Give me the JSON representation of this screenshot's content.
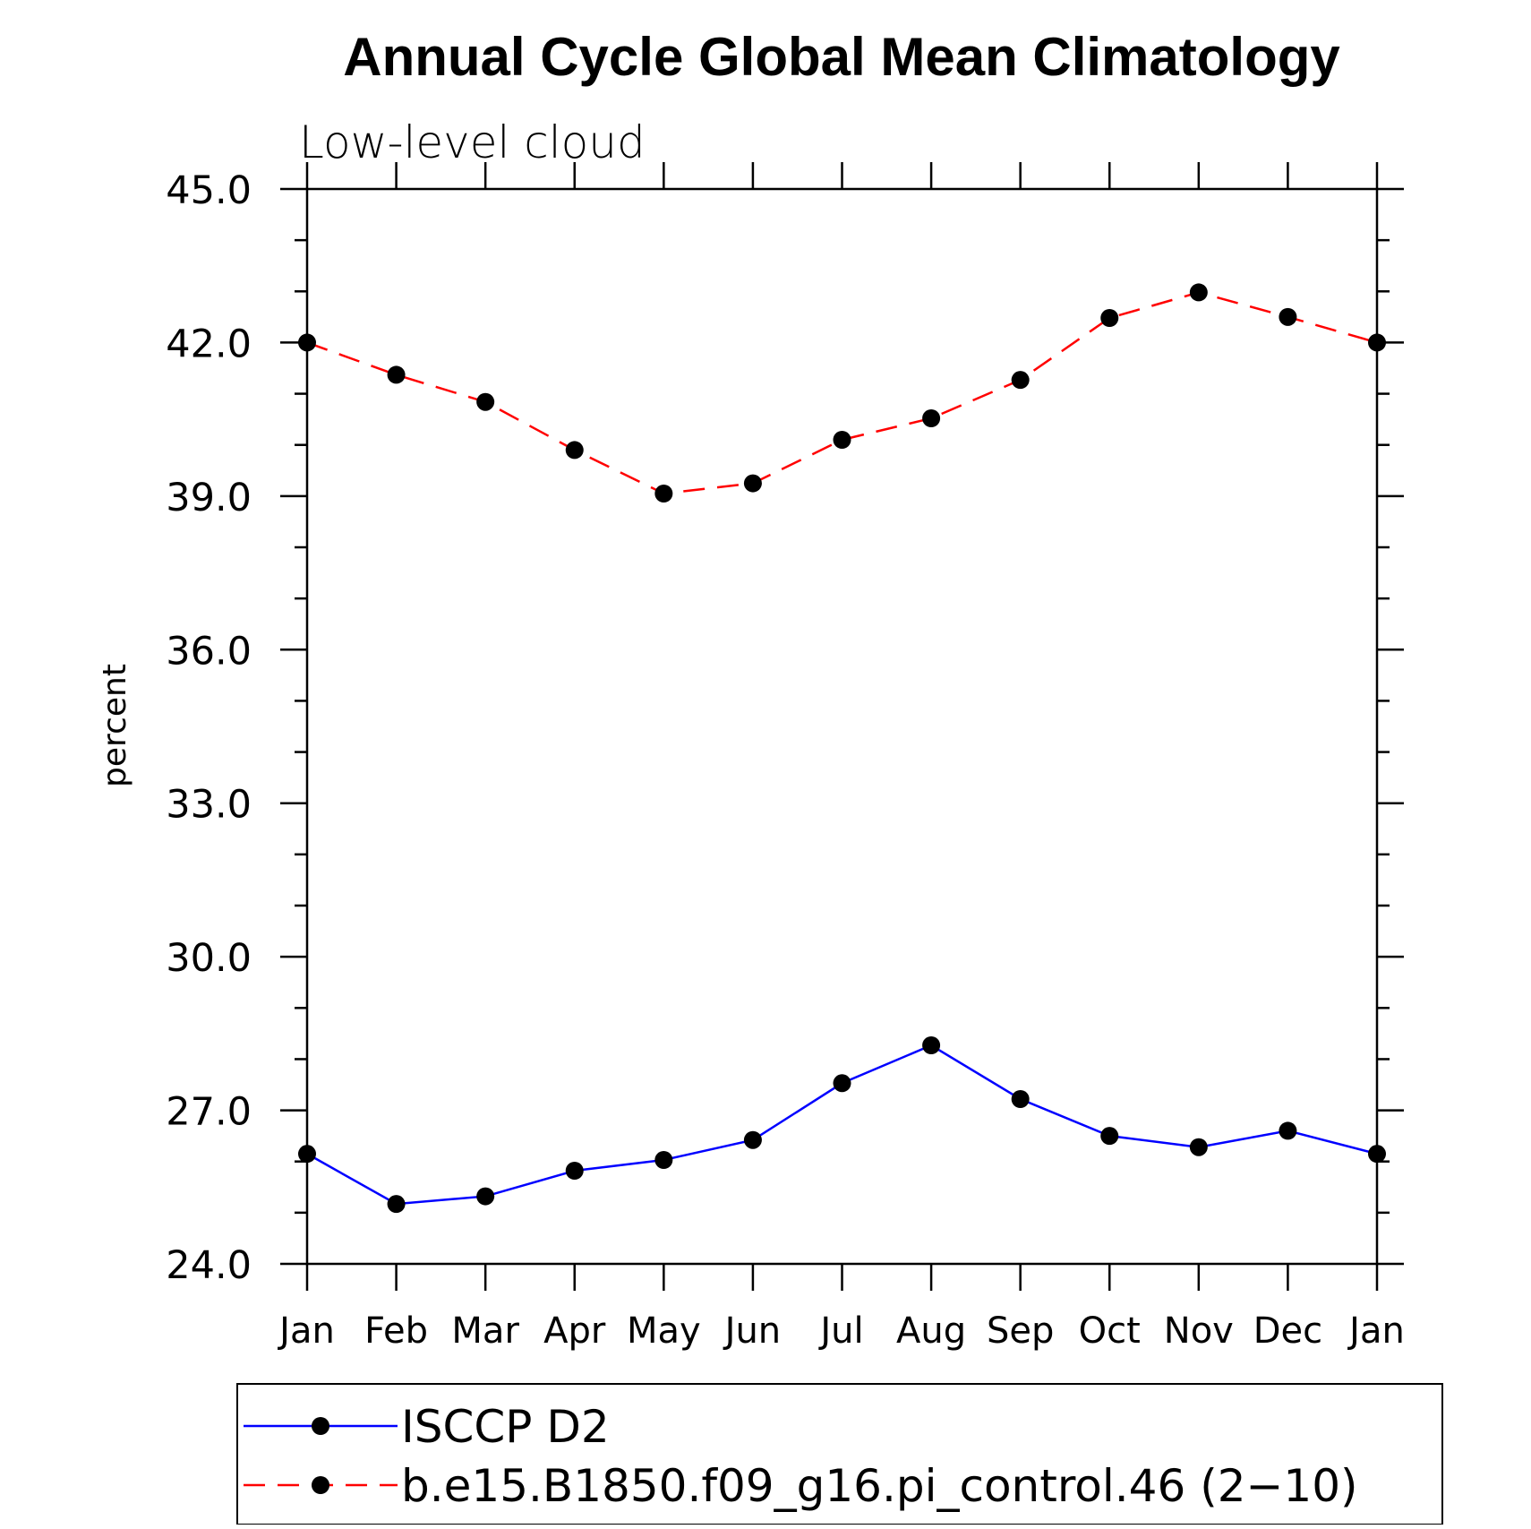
{
  "chart_data": {
    "type": "line",
    "title": "Annual Cycle Global Mean Climatology",
    "subtitle": "Low-level cloud",
    "xlabel": "",
    "ylabel": "percent",
    "categories": [
      "Jan",
      "Feb",
      "Mar",
      "Apr",
      "May",
      "Jun",
      "Jul",
      "Aug",
      "Sep",
      "Oct",
      "Nov",
      "Dec",
      "Jan"
    ],
    "yticks": [
      "24.0",
      "27.0",
      "30.0",
      "33.0",
      "36.0",
      "39.0",
      "42.0",
      "45.0"
    ],
    "ylim": [
      24.0,
      45.0
    ],
    "grid": false,
    "legend_position": "bottom",
    "series": [
      {
        "name": "ISCCP D2",
        "color": "#0000ff",
        "dash": "solid",
        "marker": "filled-circle",
        "values": [
          26.15,
          25.17,
          25.32,
          25.82,
          26.03,
          26.42,
          27.53,
          28.27,
          27.22,
          26.5,
          26.28,
          26.6,
          26.15
        ]
      },
      {
        "name": "b.e15.B1850.f09_g16.pi_control.46 (2−10)",
        "color": "#ff0000",
        "dash": "dashed",
        "marker": "filled-circle",
        "values": [
          42.0,
          41.37,
          40.84,
          39.9,
          39.05,
          39.25,
          40.1,
          40.52,
          41.27,
          42.48,
          42.98,
          42.5,
          42.0
        ]
      }
    ]
  }
}
